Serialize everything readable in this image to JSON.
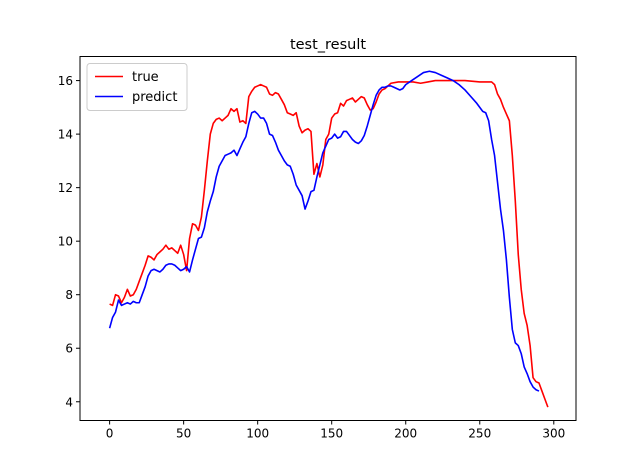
{
  "chart_data": {
    "type": "line",
    "title": "test_result",
    "xlabel": "",
    "ylabel": "",
    "xlim": [
      -20,
      315
    ],
    "ylim": [
      3.3,
      16.9
    ],
    "x_ticks": [
      0,
      50,
      100,
      150,
      200,
      250,
      300
    ],
    "y_ticks": [
      4,
      6,
      8,
      10,
      12,
      14,
      16
    ],
    "grid": false,
    "legend_position": "top-left",
    "series": [
      {
        "name": "true",
        "color": "#ff0000",
        "points": [
          [
            0,
            7.65
          ],
          [
            2,
            7.6
          ],
          [
            4,
            8.0
          ],
          [
            6,
            7.95
          ],
          [
            8,
            7.7
          ],
          [
            10,
            7.9
          ],
          [
            12,
            8.2
          ],
          [
            14,
            7.95
          ],
          [
            16,
            8.0
          ],
          [
            18,
            8.2
          ],
          [
            20,
            8.5
          ],
          [
            22,
            8.8
          ],
          [
            24,
            9.1
          ],
          [
            26,
            9.45
          ],
          [
            28,
            9.4
          ],
          [
            30,
            9.3
          ],
          [
            32,
            9.5
          ],
          [
            34,
            9.6
          ],
          [
            36,
            9.7
          ],
          [
            38,
            9.85
          ],
          [
            40,
            9.7
          ],
          [
            42,
            9.75
          ],
          [
            44,
            9.65
          ],
          [
            46,
            9.55
          ],
          [
            48,
            9.85
          ],
          [
            50,
            9.5
          ],
          [
            52,
            8.9
          ],
          [
            54,
            10.1
          ],
          [
            56,
            10.65
          ],
          [
            58,
            10.6
          ],
          [
            60,
            10.4
          ],
          [
            62,
            10.9
          ],
          [
            64,
            11.9
          ],
          [
            66,
            13.0
          ],
          [
            68,
            14.0
          ],
          [
            70,
            14.4
          ],
          [
            72,
            14.55
          ],
          [
            74,
            14.6
          ],
          [
            76,
            14.5
          ],
          [
            78,
            14.6
          ],
          [
            80,
            14.7
          ],
          [
            82,
            14.95
          ],
          [
            84,
            14.85
          ],
          [
            86,
            14.95
          ],
          [
            88,
            14.45
          ],
          [
            90,
            14.5
          ],
          [
            92,
            14.4
          ],
          [
            94,
            15.4
          ],
          [
            96,
            15.6
          ],
          [
            98,
            15.75
          ],
          [
            100,
            15.8
          ],
          [
            102,
            15.85
          ],
          [
            104,
            15.8
          ],
          [
            106,
            15.75
          ],
          [
            108,
            15.5
          ],
          [
            110,
            15.45
          ],
          [
            112,
            15.55
          ],
          [
            114,
            15.5
          ],
          [
            116,
            15.3
          ],
          [
            118,
            15.1
          ],
          [
            120,
            14.8
          ],
          [
            122,
            14.75
          ],
          [
            124,
            14.7
          ],
          [
            126,
            14.8
          ],
          [
            128,
            14.3
          ],
          [
            130,
            14.05
          ],
          [
            132,
            14.15
          ],
          [
            134,
            14.2
          ],
          [
            136,
            14.1
          ],
          [
            138,
            12.5
          ],
          [
            140,
            12.9
          ],
          [
            142,
            12.4
          ],
          [
            144,
            12.85
          ],
          [
            146,
            13.8
          ],
          [
            148,
            14.0
          ],
          [
            150,
            14.6
          ],
          [
            152,
            14.75
          ],
          [
            154,
            14.8
          ],
          [
            156,
            15.15
          ],
          [
            158,
            15.05
          ],
          [
            160,
            15.25
          ],
          [
            162,
            15.3
          ],
          [
            164,
            15.35
          ],
          [
            166,
            15.2
          ],
          [
            168,
            15.3
          ],
          [
            170,
            15.4
          ],
          [
            172,
            15.35
          ],
          [
            174,
            15.1
          ],
          [
            176,
            14.9
          ],
          [
            178,
            14.95
          ],
          [
            180,
            15.2
          ],
          [
            182,
            15.5
          ],
          [
            184,
            15.65
          ],
          [
            186,
            15.7
          ],
          [
            188,
            15.8
          ],
          [
            190,
            15.9
          ],
          [
            195,
            15.95
          ],
          [
            200,
            15.95
          ],
          [
            205,
            15.95
          ],
          [
            210,
            15.9
          ],
          [
            215,
            15.95
          ],
          [
            220,
            16.0
          ],
          [
            230,
            16.0
          ],
          [
            240,
            16.0
          ],
          [
            250,
            15.95
          ],
          [
            258,
            15.95
          ],
          [
            260,
            15.85
          ],
          [
            262,
            15.5
          ],
          [
            264,
            15.3
          ],
          [
            266,
            15.0
          ],
          [
            268,
            14.75
          ],
          [
            270,
            14.5
          ],
          [
            272,
            13.2
          ],
          [
            274,
            11.5
          ],
          [
            276,
            9.5
          ],
          [
            278,
            8.2
          ],
          [
            280,
            7.3
          ],
          [
            282,
            6.85
          ],
          [
            284,
            6.1
          ],
          [
            286,
            4.9
          ],
          [
            288,
            4.75
          ],
          [
            290,
            4.7
          ],
          [
            292,
            4.4
          ],
          [
            294,
            4.1
          ],
          [
            296,
            3.8
          ]
        ]
      },
      {
        "name": "predict",
        "color": "#0000ff",
        "points": [
          [
            0,
            6.75
          ],
          [
            2,
            7.15
          ],
          [
            4,
            7.35
          ],
          [
            6,
            7.8
          ],
          [
            8,
            7.6
          ],
          [
            10,
            7.65
          ],
          [
            12,
            7.7
          ],
          [
            14,
            7.65
          ],
          [
            16,
            7.75
          ],
          [
            18,
            7.7
          ],
          [
            20,
            7.7
          ],
          [
            22,
            8.0
          ],
          [
            24,
            8.3
          ],
          [
            26,
            8.7
          ],
          [
            28,
            8.9
          ],
          [
            30,
            8.95
          ],
          [
            32,
            8.9
          ],
          [
            34,
            8.85
          ],
          [
            36,
            8.95
          ],
          [
            38,
            9.1
          ],
          [
            40,
            9.15
          ],
          [
            42,
            9.15
          ],
          [
            44,
            9.1
          ],
          [
            46,
            9.0
          ],
          [
            48,
            8.9
          ],
          [
            50,
            8.95
          ],
          [
            52,
            9.05
          ],
          [
            54,
            8.85
          ],
          [
            56,
            9.3
          ],
          [
            58,
            9.7
          ],
          [
            60,
            10.1
          ],
          [
            62,
            10.15
          ],
          [
            64,
            10.5
          ],
          [
            66,
            11.1
          ],
          [
            68,
            11.5
          ],
          [
            70,
            11.85
          ],
          [
            72,
            12.4
          ],
          [
            74,
            12.8
          ],
          [
            76,
            13.0
          ],
          [
            78,
            13.2
          ],
          [
            80,
            13.25
          ],
          [
            82,
            13.3
          ],
          [
            84,
            13.4
          ],
          [
            86,
            13.2
          ],
          [
            88,
            13.45
          ],
          [
            90,
            13.7
          ],
          [
            92,
            13.9
          ],
          [
            94,
            14.4
          ],
          [
            96,
            14.8
          ],
          [
            98,
            14.85
          ],
          [
            100,
            14.75
          ],
          [
            102,
            14.6
          ],
          [
            104,
            14.6
          ],
          [
            106,
            14.4
          ],
          [
            108,
            14.0
          ],
          [
            110,
            13.95
          ],
          [
            112,
            13.7
          ],
          [
            114,
            13.4
          ],
          [
            116,
            13.2
          ],
          [
            118,
            13.0
          ],
          [
            120,
            12.85
          ],
          [
            122,
            12.8
          ],
          [
            124,
            12.5
          ],
          [
            126,
            12.1
          ],
          [
            128,
            11.9
          ],
          [
            130,
            11.7
          ],
          [
            132,
            11.2
          ],
          [
            134,
            11.5
          ],
          [
            136,
            11.85
          ],
          [
            138,
            11.9
          ],
          [
            140,
            12.4
          ],
          [
            142,
            12.85
          ],
          [
            144,
            13.3
          ],
          [
            146,
            13.55
          ],
          [
            148,
            13.8
          ],
          [
            150,
            13.85
          ],
          [
            152,
            14.0
          ],
          [
            154,
            13.85
          ],
          [
            156,
            13.9
          ],
          [
            158,
            14.1
          ],
          [
            160,
            14.1
          ],
          [
            162,
            13.95
          ],
          [
            164,
            13.8
          ],
          [
            166,
            13.7
          ],
          [
            168,
            13.65
          ],
          [
            170,
            13.75
          ],
          [
            172,
            13.95
          ],
          [
            174,
            14.3
          ],
          [
            176,
            14.7
          ],
          [
            178,
            15.1
          ],
          [
            180,
            15.45
          ],
          [
            182,
            15.65
          ],
          [
            184,
            15.75
          ],
          [
            186,
            15.75
          ],
          [
            188,
            15.8
          ],
          [
            190,
            15.8
          ],
          [
            192,
            15.75
          ],
          [
            194,
            15.7
          ],
          [
            196,
            15.65
          ],
          [
            198,
            15.7
          ],
          [
            200,
            15.85
          ],
          [
            204,
            16.0
          ],
          [
            208,
            16.15
          ],
          [
            212,
            16.3
          ],
          [
            216,
            16.35
          ],
          [
            220,
            16.3
          ],
          [
            224,
            16.2
          ],
          [
            228,
            16.1
          ],
          [
            232,
            16.0
          ],
          [
            236,
            15.85
          ],
          [
            240,
            15.65
          ],
          [
            244,
            15.4
          ],
          [
            248,
            15.15
          ],
          [
            252,
            14.85
          ],
          [
            254,
            14.8
          ],
          [
            256,
            14.5
          ],
          [
            258,
            13.8
          ],
          [
            260,
            13.2
          ],
          [
            262,
            12.2
          ],
          [
            264,
            11.2
          ],
          [
            266,
            10.4
          ],
          [
            268,
            9.3
          ],
          [
            270,
            7.9
          ],
          [
            272,
            6.7
          ],
          [
            274,
            6.2
          ],
          [
            276,
            6.1
          ],
          [
            278,
            5.8
          ],
          [
            280,
            5.3
          ],
          [
            282,
            5.05
          ],
          [
            284,
            4.75
          ],
          [
            286,
            4.55
          ],
          [
            288,
            4.45
          ],
          [
            290,
            4.4
          ]
        ]
      }
    ]
  }
}
